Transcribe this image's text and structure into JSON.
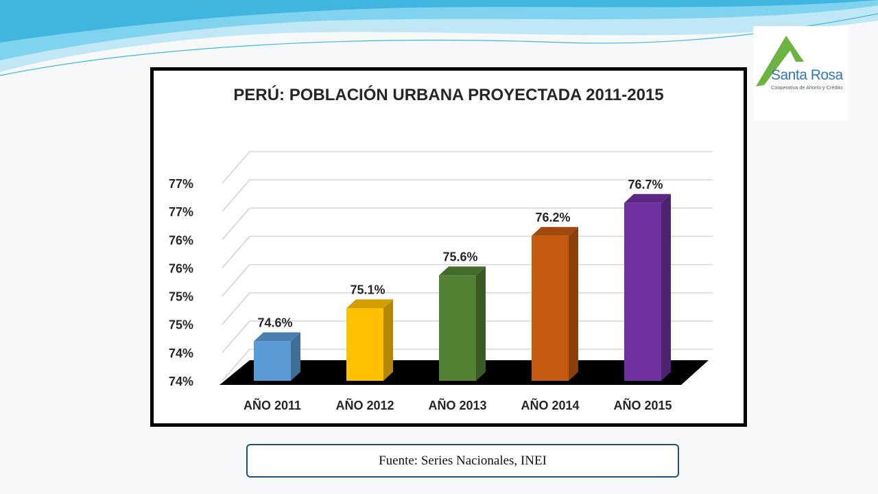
{
  "logo": {
    "name": "Santa Rosa",
    "subtitle": "Cooperativa de Ahorro y Crédito"
  },
  "source": "Fuente: Series Nacionales, INEI",
  "colors": {
    "wave_light": "#bfe7f5",
    "wave_mid": "#7fd3ee",
    "wave_dark": "#3fb5e0",
    "logo_green": "#6cb33f",
    "logo_blue": "#2f78bb",
    "floor": "#000000",
    "source_border": "#1f4e79"
  },
  "chart_data": {
    "type": "bar",
    "title": "PERÚ: POBLACIÓN URBANA PROYECTADA 2011-2015",
    "xlabel": "",
    "ylabel": "",
    "categories": [
      "AÑO 2011",
      "AÑO 2012",
      "AÑO 2013",
      "AÑO 2014",
      "AÑO 2015"
    ],
    "values": [
      74.6,
      75.1,
      75.6,
      76.2,
      76.7
    ],
    "value_labels": [
      "74.6%",
      "75.1%",
      "75.6%",
      "76.2%",
      "76.7%"
    ],
    "bar_colors": [
      "#5b9bd5",
      "#ffc000",
      "#548235",
      "#c55a11",
      "#7030a0"
    ],
    "y_tick_labels": [
      "74%",
      "74%",
      "75%",
      "75%",
      "76%",
      "76%",
      "77%",
      "77%"
    ],
    "ylim": [
      74.0,
      77.0
    ],
    "style": "3d-column",
    "grid": true,
    "legend": "none"
  }
}
